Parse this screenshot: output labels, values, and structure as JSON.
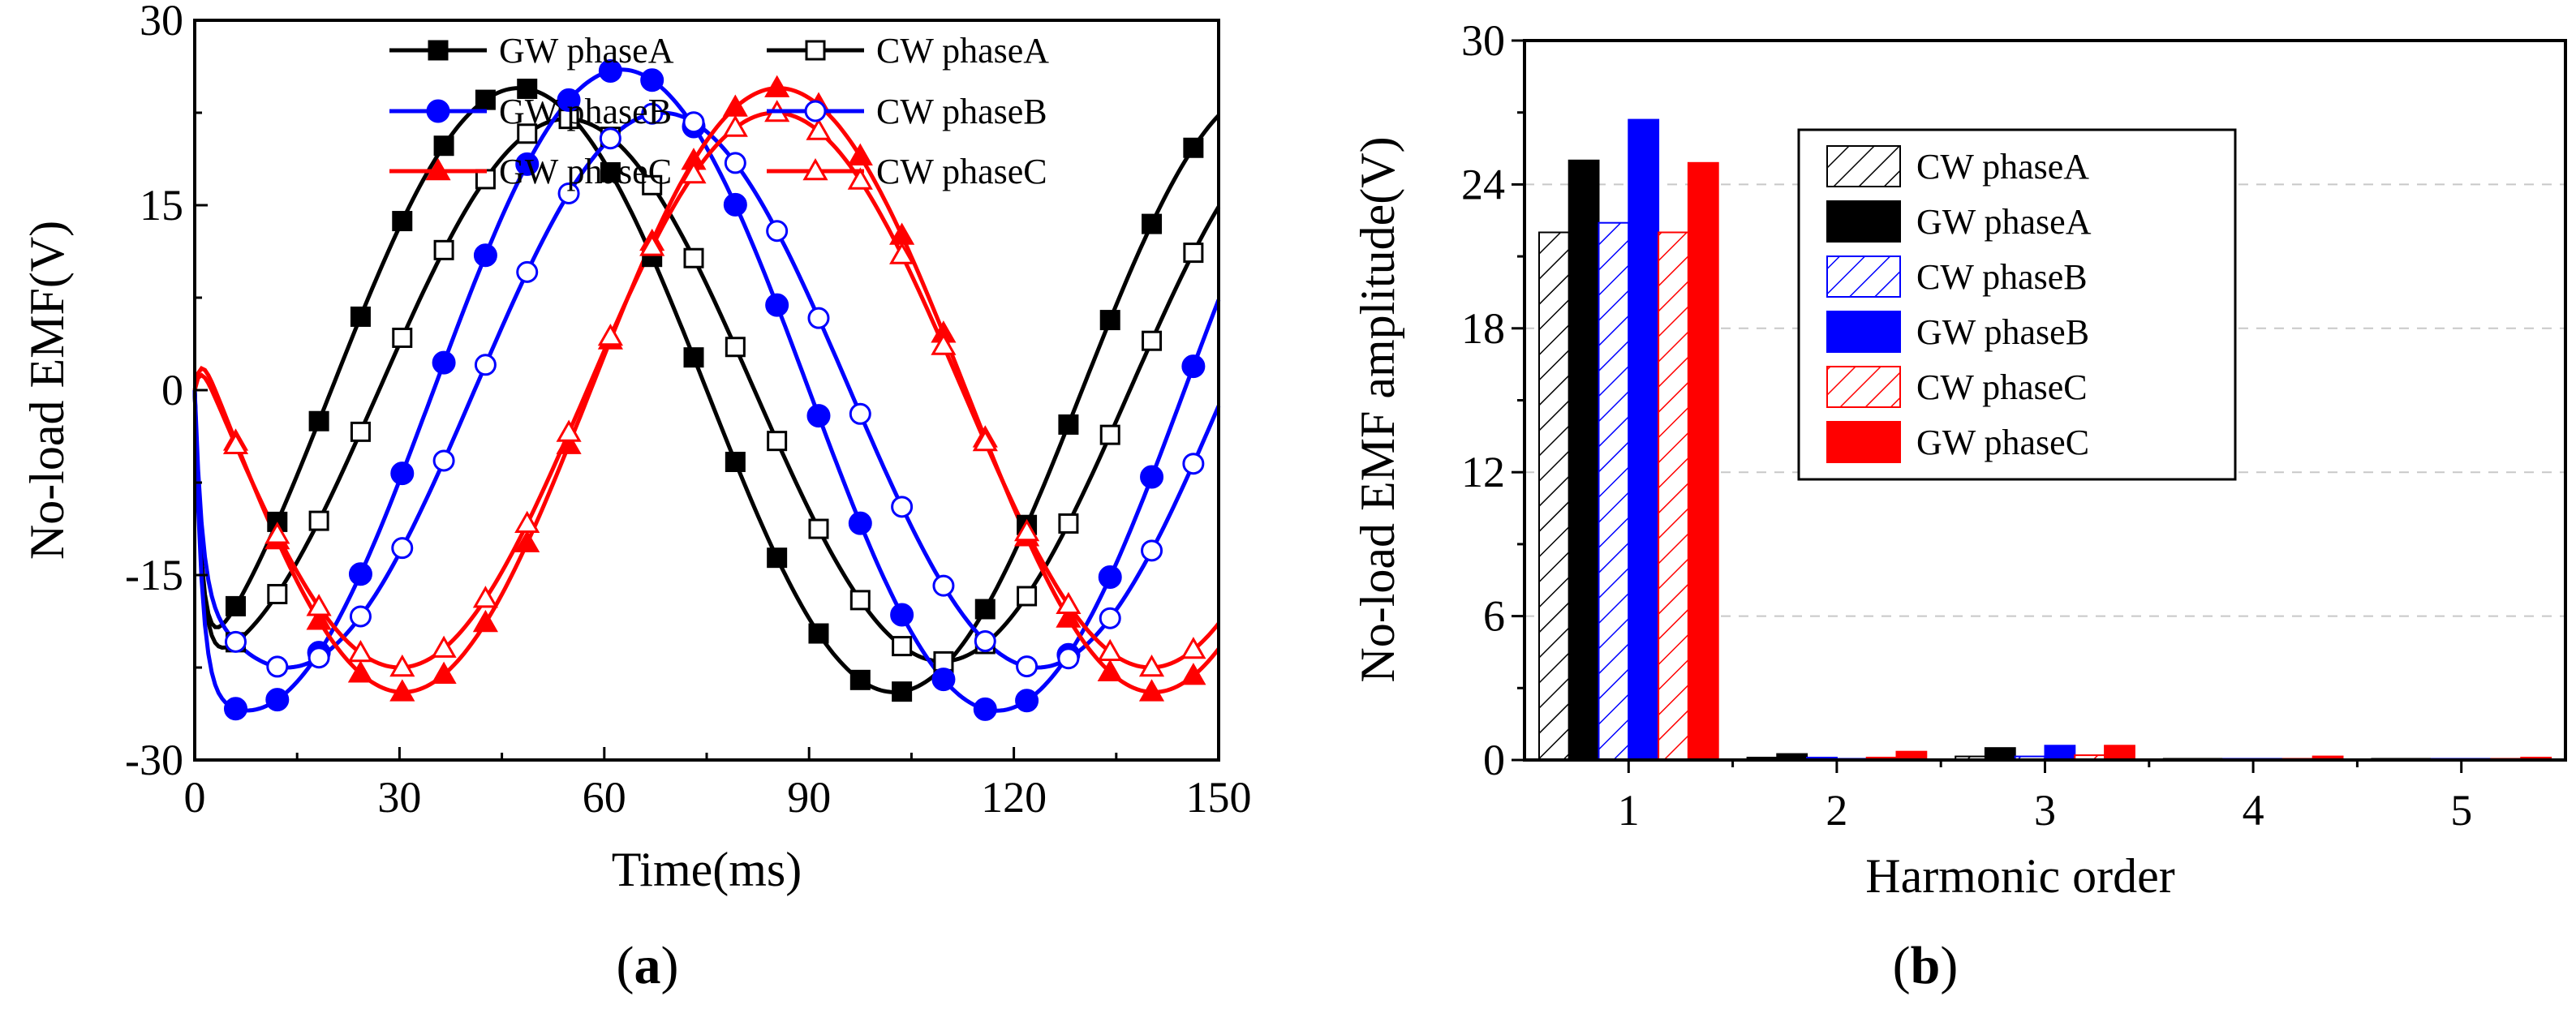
{
  "figure": {
    "panel_labels": [
      {
        "prefix": "(",
        "letter": "a",
        "suffix": ")"
      },
      {
        "prefix": "(",
        "letter": "b",
        "suffix": ")"
      }
    ]
  },
  "colors": {
    "phaseA": "#000000",
    "phaseB": "#0000ff",
    "phaseC": "#ff0000"
  },
  "chart_data": [
    {
      "type": "line",
      "panel": "a",
      "title": "",
      "xlabel": "Time(ms)",
      "ylabel": "No-load EMF(V)",
      "xlim": [
        0,
        150
      ],
      "ylim": [
        -30,
        30
      ],
      "xticks": [
        0,
        30,
        60,
        90,
        120,
        150
      ],
      "yticks": [
        -30,
        -15,
        0,
        15,
        30
      ],
      "legend_position": "top-center",
      "series": [
        {
          "name": "GW phaseA",
          "color": "#000000",
          "marker": "filled-square",
          "amplitude": 24.5,
          "zero_time": 20,
          "period": 110
        },
        {
          "name": "CW phaseA",
          "color": "#000000",
          "marker": "open-square",
          "amplitude": 22,
          "zero_time": 27,
          "period": 110
        },
        {
          "name": "GW phaseB",
          "color": "#0000ff",
          "marker": "filled-circle",
          "amplitude": 26,
          "zero_time": 35,
          "period": 110
        },
        {
          "name": "CW phaseB",
          "color": "#0000ff",
          "marker": "open-circle",
          "amplitude": 22.5,
          "zero_time": 41,
          "period": 110
        },
        {
          "name": "GW phaseC",
          "color": "#ff0000",
          "marker": "filled-triangle",
          "amplitude": 24.5,
          "zero_time": 58,
          "period": 110
        },
        {
          "name": "CW phaseC",
          "color": "#ff0000",
          "marker": "open-triangle",
          "amplitude": 22.5,
          "zero_time": 57.5,
          "period": 110
        }
      ]
    },
    {
      "type": "bar",
      "panel": "b",
      "title": "",
      "xlabel": "Harmonic order",
      "ylabel": "No-load EMF amplitude(V)",
      "xlim": [
        0.5,
        5.5
      ],
      "ylim": [
        0,
        30
      ],
      "categories": [
        "1",
        "2",
        "3",
        "4",
        "5"
      ],
      "yticks": [
        0,
        6,
        12,
        18,
        24,
        30
      ],
      "grid": "horizontal-dashed",
      "legend_position": "top-right",
      "series": [
        {
          "name": "CW phaseA",
          "color": "#000000",
          "pattern": "hatched",
          "values": [
            22.0,
            0.1,
            0.15,
            0.05,
            0.05
          ]
        },
        {
          "name": "GW phaseA",
          "color": "#000000",
          "pattern": "solid",
          "values": [
            25.0,
            0.25,
            0.5,
            0.05,
            0.05
          ]
        },
        {
          "name": "CW phaseB",
          "color": "#0000ff",
          "pattern": "hatched",
          "values": [
            22.4,
            0.1,
            0.15,
            0.05,
            0.05
          ]
        },
        {
          "name": "GW phaseB",
          "color": "#0000ff",
          "pattern": "solid",
          "values": [
            26.7,
            0.05,
            0.6,
            0.05,
            0.05
          ]
        },
        {
          "name": "CW phaseC",
          "color": "#ff0000",
          "pattern": "hatched",
          "values": [
            22.0,
            0.1,
            0.2,
            0.05,
            0.05
          ]
        },
        {
          "name": "GW phaseC",
          "color": "#ff0000",
          "pattern": "solid",
          "values": [
            24.9,
            0.35,
            0.6,
            0.15,
            0.1
          ]
        }
      ]
    }
  ]
}
